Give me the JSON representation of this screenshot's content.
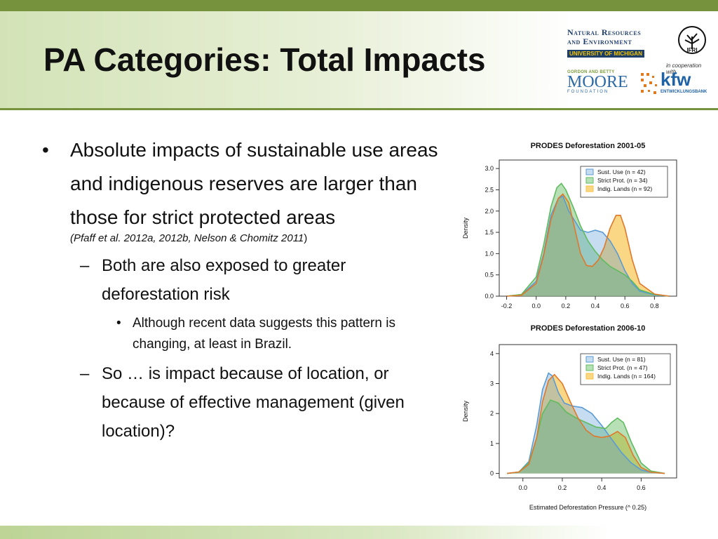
{
  "slide": {
    "title": "PA Categories: Total Impacts",
    "bullets": {
      "b1_text": "Absolute impacts of sustainable use areas and indigenous reserves are larger than those for strict protected areas",
      "b1_cite": "(Pfaff et al. 2012a, 2012b, Nelson & Chomitz 2011",
      "b1_cite_close": ")",
      "b2a_text": "Both are also exposed to greater deforestation risk",
      "b3_text": "Although recent data suggests this pattern is changing, at least in Brazil.",
      "b2b_text": "So … is impact because of location, or because of effective management (given location)?",
      "bullet_glyph": "•",
      "dash_glyph": "–"
    }
  },
  "logos": {
    "nre_line1": "Natural Resources",
    "nre_line2": "and Environment",
    "nre_line3": "UNIVERSITY OF MICHIGAN",
    "ifri": "IFRI",
    "coop": "in cooperation with",
    "moore_small": "GORDON AND BETTY",
    "moore_big": "MOORE",
    "moore_found": "FOUNDATION",
    "kfw": "kfw",
    "kfw_sub": "ENTWICKLUNGSBANK"
  },
  "chart_data": [
    {
      "type": "area",
      "title": "PRODES Deforestation 2001-05",
      "xlabel": "",
      "ylabel": "Density",
      "xlim": [
        -0.25,
        0.95
      ],
      "ylim": [
        0,
        3.2
      ],
      "xticks": [
        "-0.2",
        "0.0",
        "0.2",
        "0.4",
        "0.6",
        "0.8"
      ],
      "yticks": [
        "0.0",
        "0.5",
        "1.0",
        "1.5",
        "2.0",
        "2.5",
        "3.0"
      ],
      "legend_position": "top-right",
      "series": [
        {
          "name": "Sust. Use (n = 42)",
          "color": "#5b9bd5",
          "x": [
            -0.2,
            -0.1,
            0.0,
            0.05,
            0.1,
            0.15,
            0.18,
            0.22,
            0.3,
            0.35,
            0.4,
            0.45,
            0.5,
            0.55,
            0.6,
            0.65,
            0.7,
            0.8,
            0.9
          ],
          "y": [
            0.0,
            0.03,
            0.35,
            1.0,
            1.9,
            2.3,
            2.35,
            2.0,
            1.55,
            1.5,
            1.55,
            1.5,
            1.3,
            1.0,
            0.6,
            0.3,
            0.12,
            0.03,
            0.0
          ]
        },
        {
          "name": "Strict Prot. (n = 34)",
          "color": "#60bb5f",
          "x": [
            -0.2,
            -0.1,
            0.0,
            0.05,
            0.1,
            0.14,
            0.17,
            0.2,
            0.25,
            0.3,
            0.35,
            0.4,
            0.45,
            0.5,
            0.55,
            0.6,
            0.65,
            0.7,
            0.8,
            0.9
          ],
          "y": [
            0.0,
            0.04,
            0.45,
            1.2,
            2.1,
            2.55,
            2.65,
            2.5,
            2.1,
            1.65,
            1.3,
            1.05,
            0.85,
            0.7,
            0.6,
            0.5,
            0.35,
            0.15,
            0.04,
            0.0
          ]
        },
        {
          "name": "Indig. Lands (n = 92)",
          "color": "#f7c242",
          "x": [
            -0.2,
            -0.1,
            0.0,
            0.05,
            0.1,
            0.15,
            0.18,
            0.22,
            0.26,
            0.3,
            0.34,
            0.38,
            0.42,
            0.46,
            0.5,
            0.54,
            0.57,
            0.6,
            0.65,
            0.7,
            0.8,
            0.9
          ],
          "y": [
            0.0,
            0.02,
            0.3,
            0.95,
            1.8,
            2.3,
            2.4,
            2.2,
            1.6,
            1.0,
            0.72,
            0.7,
            0.85,
            1.15,
            1.6,
            1.9,
            1.9,
            1.6,
            0.85,
            0.3,
            0.05,
            0.0
          ]
        }
      ]
    },
    {
      "type": "area",
      "title": "PRODES Deforestation 2006-10",
      "xlabel": "Estimated Deforestation Pressure (^ 0.25)",
      "ylabel": "Density",
      "xlim": [
        -0.12,
        0.78
      ],
      "ylim": [
        -0.15,
        4.3
      ],
      "xticks": [
        "0.0",
        "0.2",
        "0.4",
        "0.6"
      ],
      "yticks": [
        "0",
        "1",
        "2",
        "3",
        "4"
      ],
      "legend_position": "top-right",
      "series": [
        {
          "name": "Sust. Use (n = 81)",
          "color": "#5b9bd5",
          "x": [
            -0.08,
            -0.02,
            0.03,
            0.07,
            0.1,
            0.13,
            0.15,
            0.18,
            0.21,
            0.25,
            0.3,
            0.35,
            0.4,
            0.45,
            0.5,
            0.55,
            0.6,
            0.65,
            0.72
          ],
          "y": [
            0.0,
            0.05,
            0.4,
            1.6,
            2.8,
            3.35,
            3.25,
            2.7,
            2.35,
            2.25,
            2.2,
            2.0,
            1.6,
            1.15,
            0.7,
            0.35,
            0.12,
            0.04,
            0.0
          ]
        },
        {
          "name": "Strict Prot. (n = 47)",
          "color": "#60bb5f",
          "x": [
            -0.08,
            -0.02,
            0.03,
            0.07,
            0.1,
            0.14,
            0.18,
            0.22,
            0.27,
            0.32,
            0.37,
            0.42,
            0.45,
            0.48,
            0.51,
            0.55,
            0.6,
            0.65,
            0.72
          ],
          "y": [
            0.0,
            0.05,
            0.35,
            1.2,
            2.0,
            2.45,
            2.35,
            2.05,
            1.85,
            1.7,
            1.55,
            1.5,
            1.7,
            1.85,
            1.7,
            1.05,
            0.35,
            0.08,
            0.0
          ]
        },
        {
          "name": "Indig. Lands (n = 164)",
          "color": "#f7c242",
          "x": [
            -0.08,
            -0.02,
            0.03,
            0.07,
            0.1,
            0.13,
            0.16,
            0.2,
            0.24,
            0.28,
            0.32,
            0.36,
            0.4,
            0.44,
            0.48,
            0.52,
            0.56,
            0.6,
            0.65,
            0.72
          ],
          "y": [
            0.0,
            0.05,
            0.3,
            1.2,
            2.4,
            3.1,
            3.3,
            3.0,
            2.4,
            1.85,
            1.45,
            1.25,
            1.2,
            1.25,
            1.4,
            1.2,
            0.6,
            0.2,
            0.04,
            0.0
          ]
        }
      ]
    }
  ]
}
